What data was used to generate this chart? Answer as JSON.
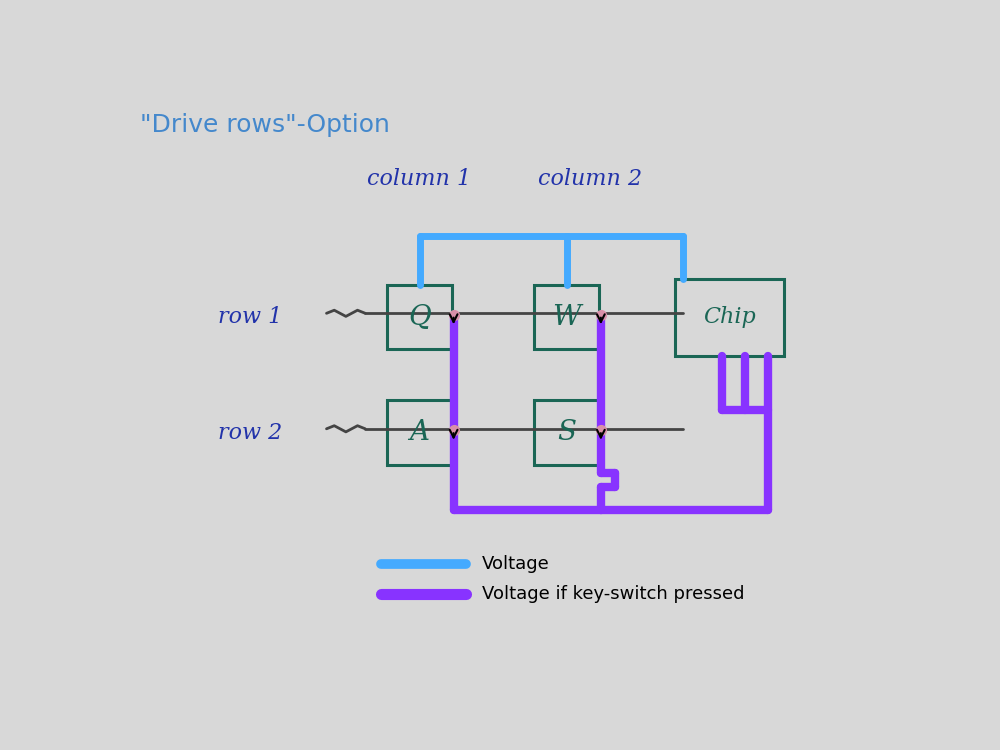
{
  "bg_color": "#d8d8d8",
  "title": "\"Drive rows\"-Option",
  "title_color": "#4488cc",
  "title_fontsize": 18,
  "col1_label": "column 1",
  "col2_label": "column 2",
  "row1_label": "row 1",
  "row2_label": "row 2",
  "label_color": "#2233aa",
  "label_fontsize": 16,
  "key_color": "#1a6655",
  "voltage_color": "#44aaff",
  "pressed_color": "#8833ff",
  "wire_color": "#444444",
  "legend_voltage_label": "Voltage",
  "legend_pressed_label": "Voltage if key-switch pressed",
  "lw_voltage": 5,
  "lw_pressed": 6,
  "lw_wire": 2
}
